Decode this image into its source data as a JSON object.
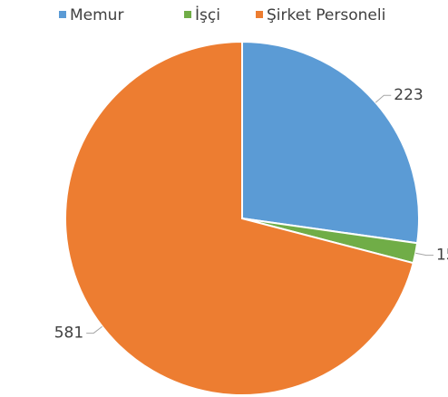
{
  "chart_data": {
    "type": "pie",
    "categories": [
      "Memur",
      "İşçi",
      "Şirket Personeli"
    ],
    "values": [
      223,
      15,
      581
    ],
    "colors": [
      "#5b9bd5",
      "#70ad47",
      "#ed7d31"
    ],
    "legend": "top"
  }
}
